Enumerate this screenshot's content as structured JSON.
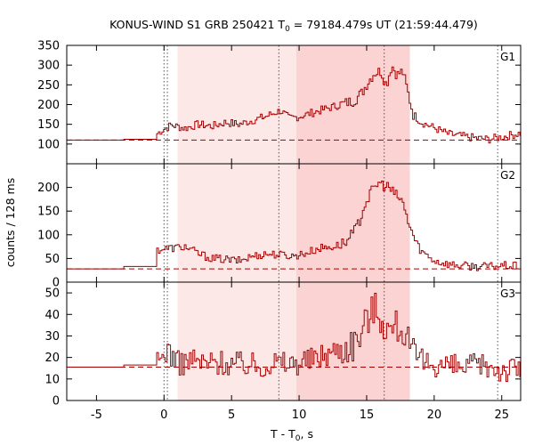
{
  "chart_data": {
    "type": "line",
    "title": "KONUS-WIND S1 GRB 250421 T",
    "title_sub": "0",
    "title_rest": " = 79184.479s UT (21:59:44.479)",
    "xlabel": "T - T",
    "xlabel_sub": "0",
    "xlabel_rest": ", s",
    "ylabel": "counts / 128 ms",
    "xlim": [
      -7.2,
      26.4
    ],
    "x_ticks": [
      -5,
      0,
      5,
      10,
      15,
      20,
      25
    ],
    "x_tick_labels": [
      "-5",
      "0",
      "5",
      "10",
      "15",
      "20",
      "25"
    ],
    "colors": {
      "line": "#a50000",
      "shade_light": "#fde8e8",
      "shade_dark": "#fbd3d3",
      "guide": "#555555"
    },
    "shaded_intervals": [
      {
        "x0": 1.0,
        "x1": 9.8,
        "level": "light"
      },
      {
        "x0": 9.8,
        "x1": 18.2,
        "level": "dark"
      }
    ],
    "vertical_guides": [
      {
        "x": 0.0,
        "style": "dotted"
      },
      {
        "x": 0.25,
        "style": "dotted"
      },
      {
        "x": 8.5,
        "style": "dotted"
      },
      {
        "x": 16.3,
        "style": "dotted"
      },
      {
        "x": 24.7,
        "style": "dotted"
      }
    ],
    "panels": [
      {
        "name": "G1",
        "ylim": [
          50,
          350
        ],
        "y_ticks": [
          100,
          150,
          200,
          250,
          300,
          350
        ],
        "y_tick_labels": [
          "100",
          "150",
          "200",
          "250",
          "300",
          "350"
        ],
        "background": 110,
        "points": [
          [
            -7.2,
            110
          ],
          [
            -3,
            110
          ],
          [
            -3,
            112
          ],
          [
            -0.6,
            112
          ],
          [
            -0.6,
            125
          ],
          [
            -0.2,
            135
          ],
          [
            0.5,
            148
          ],
          [
            1.5,
            140
          ],
          [
            2.5,
            150
          ],
          [
            3.5,
            145
          ],
          [
            4.5,
            155
          ],
          [
            5.5,
            150
          ],
          [
            6.5,
            160
          ],
          [
            7.5,
            170
          ],
          [
            8.2,
            180
          ],
          [
            8.6,
            185
          ],
          [
            9.2,
            165
          ],
          [
            10,
            170
          ],
          [
            11,
            180
          ],
          [
            12,
            190
          ],
          [
            13,
            200
          ],
          [
            14,
            210
          ],
          [
            14.6,
            230
          ],
          [
            15,
            255
          ],
          [
            15.5,
            280
          ],
          [
            16.0,
            285
          ],
          [
            16.4,
            250
          ],
          [
            16.8,
            300
          ],
          [
            17.2,
            275
          ],
          [
            17.6,
            285
          ],
          [
            18.0,
            230
          ],
          [
            18.4,
            175
          ],
          [
            19,
            155
          ],
          [
            20,
            140
          ],
          [
            21,
            125
          ],
          [
            22,
            120
          ],
          [
            23,
            115
          ],
          [
            24,
            112
          ],
          [
            25,
            118
          ],
          [
            26.4,
            128
          ]
        ]
      },
      {
        "name": "G2",
        "ylim": [
          0,
          250
        ],
        "y_ticks": [
          0,
          50,
          100,
          150,
          200
        ],
        "y_tick_labels": [
          "0",
          "50",
          "100",
          "150",
          "200"
        ],
        "background": 28,
        "points": [
          [
            -7.2,
            28
          ],
          [
            -3,
            28
          ],
          [
            -3,
            33
          ],
          [
            -0.6,
            33
          ],
          [
            -0.6,
            68
          ],
          [
            0.5,
            72
          ],
          [
            1.5,
            75
          ],
          [
            2.5,
            60
          ],
          [
            3.5,
            50
          ],
          [
            4.5,
            48
          ],
          [
            5.5,
            45
          ],
          [
            6.5,
            55
          ],
          [
            7.5,
            60
          ],
          [
            8.5,
            58
          ],
          [
            9.5,
            55
          ],
          [
            10.5,
            62
          ],
          [
            11.5,
            72
          ],
          [
            12.5,
            75
          ],
          [
            13.5,
            85
          ],
          [
            14.3,
            120
          ],
          [
            14.8,
            165
          ],
          [
            15.3,
            190
          ],
          [
            15.8,
            210
          ],
          [
            16.2,
            205
          ],
          [
            16.6,
            200
          ],
          [
            17.0,
            185
          ],
          [
            17.5,
            175
          ],
          [
            18.0,
            130
          ],
          [
            18.5,
            90
          ],
          [
            19,
            65
          ],
          [
            20,
            45
          ],
          [
            21,
            38
          ],
          [
            22,
            35
          ],
          [
            23,
            33
          ],
          [
            24,
            33
          ],
          [
            25,
            35
          ],
          [
            26.4,
            33
          ]
        ]
      },
      {
        "name": "G3",
        "ylim": [
          0,
          55
        ],
        "y_ticks": [
          0,
          10,
          20,
          30,
          40,
          50
        ],
        "y_tick_labels": [
          "0",
          "10",
          "20",
          "30",
          "40",
          "50"
        ],
        "background": 15.5,
        "points": [
          [
            -7.2,
            15.5
          ],
          [
            -3,
            15.5
          ],
          [
            -3,
            16.5
          ],
          [
            -0.6,
            16.5
          ],
          [
            -0.2,
            20
          ],
          [
            0.2,
            24
          ],
          [
            1,
            17
          ],
          [
            2,
            19
          ],
          [
            3,
            17
          ],
          [
            4,
            18
          ],
          [
            5,
            17
          ],
          [
            6,
            17
          ],
          [
            7,
            16
          ],
          [
            8,
            18
          ],
          [
            9,
            17
          ],
          [
            10,
            18
          ],
          [
            11,
            19
          ],
          [
            12,
            22
          ],
          [
            13,
            24
          ],
          [
            14,
            27
          ],
          [
            14.6,
            32
          ],
          [
            15.1,
            40
          ],
          [
            15.6,
            43
          ],
          [
            16.1,
            38
          ],
          [
            16.6,
            32
          ],
          [
            17.2,
            35
          ],
          [
            17.8,
            32
          ],
          [
            18.2,
            22
          ],
          [
            19,
            18
          ],
          [
            20,
            17
          ],
          [
            21,
            16
          ],
          [
            22,
            15
          ],
          [
            23,
            16
          ],
          [
            24,
            16
          ],
          [
            25,
            14
          ],
          [
            26.4,
            15
          ]
        ]
      }
    ]
  }
}
